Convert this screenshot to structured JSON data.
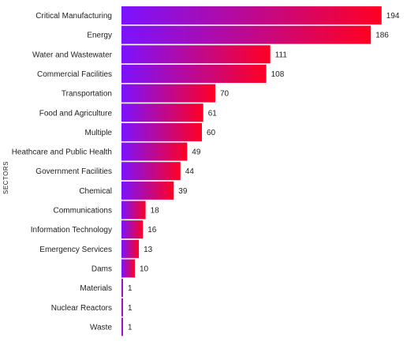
{
  "chart_data": {
    "type": "bar",
    "orientation": "horizontal",
    "title": "",
    "xlabel": "",
    "ylabel": "SECTORS",
    "xlim": [
      0,
      200
    ],
    "grid": false,
    "legend": "none",
    "colors": {
      "gradient_start": "#7b12ff",
      "gradient_end": "#ff0022"
    },
    "categories": [
      "Critical Manufacturing",
      "Energy",
      "Water and Wastewater",
      "Commercial Facilities",
      "Transportation",
      "Food and Agriculture",
      "Multiple",
      "Heathcare and Public Health",
      "Government Facilities",
      "Chemical",
      "Communications",
      "Information Technology",
      "Emergency Services",
      "Dams",
      "Materials",
      "Nuclear Reactors",
      "Waste"
    ],
    "values": [
      194,
      186,
      111,
      108,
      70,
      61,
      60,
      49,
      44,
      39,
      18,
      16,
      13,
      10,
      1,
      1,
      1
    ]
  }
}
